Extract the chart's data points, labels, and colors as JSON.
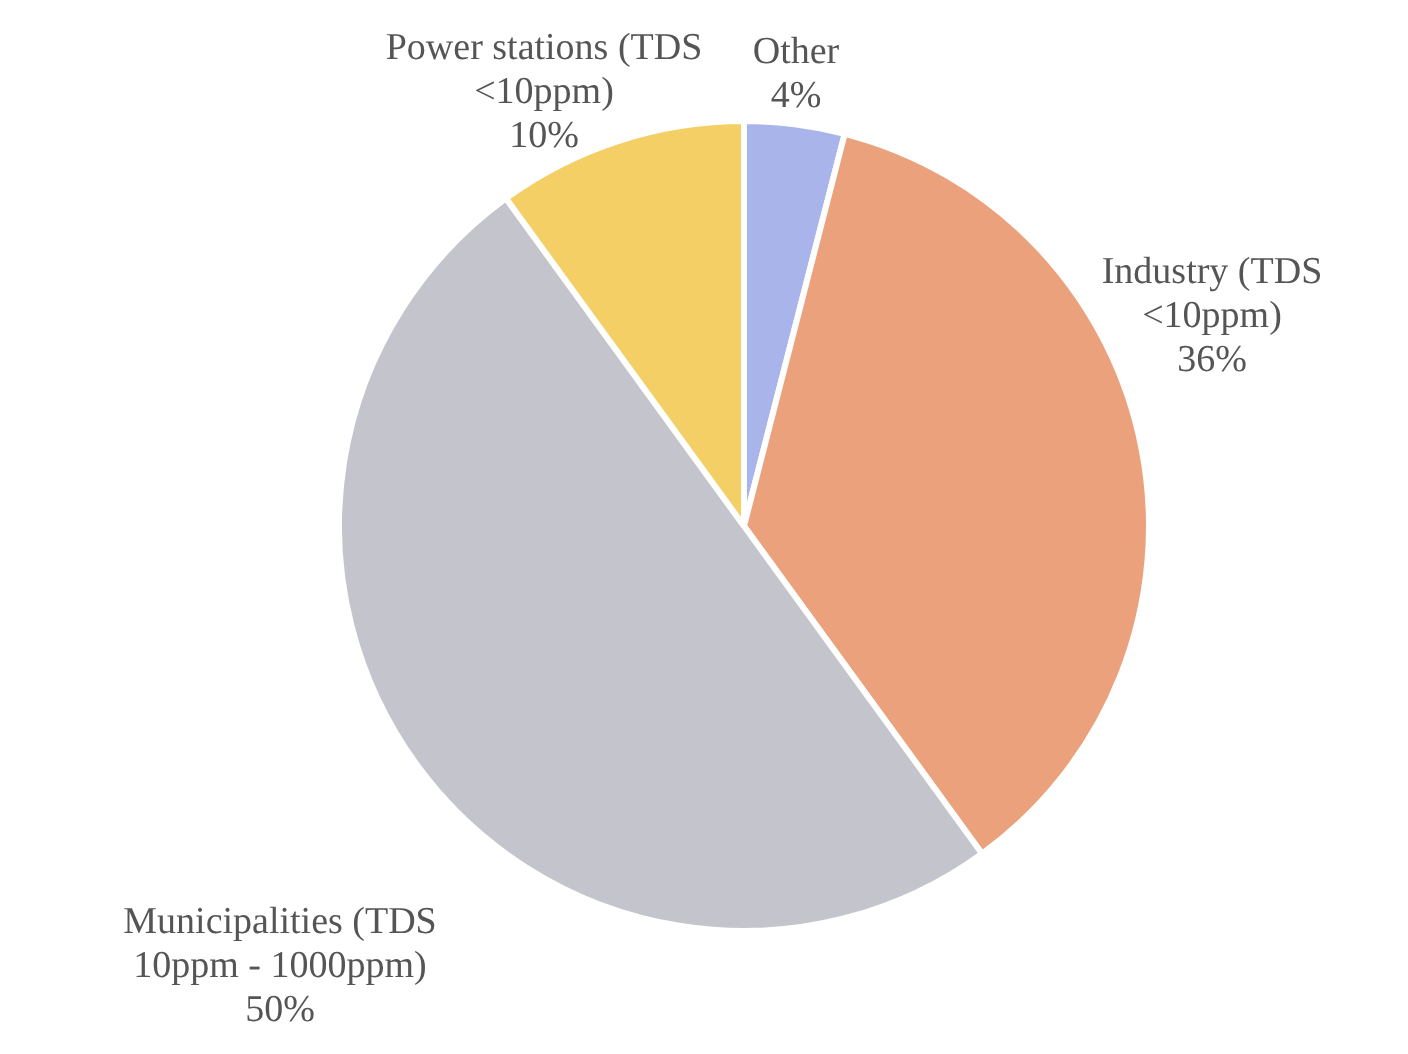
{
  "chart_data": {
    "type": "pie",
    "categories": [
      "Other",
      "Industry (TDS <10ppm)",
      "Municipalities (TDS 10ppm - 1000ppm)",
      "Power stations (TDS <10ppm)"
    ],
    "values": [
      4,
      36,
      50,
      10
    ],
    "colors": [
      "#a9b5ea",
      "#eba27c",
      "#c4c4cc",
      "#f3cf66"
    ],
    "value_labels": [
      "4%",
      "36%",
      "50%",
      "10%"
    ],
    "legend": false
  }
}
